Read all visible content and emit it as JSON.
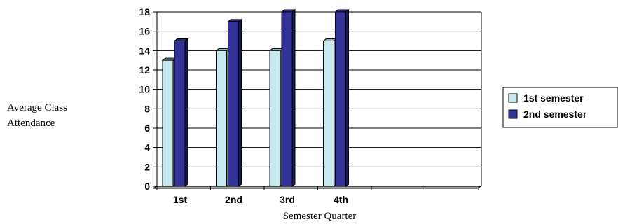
{
  "chart_data": {
    "type": "bar",
    "categories": [
      "1st",
      "2nd",
      "3rd",
      "4th"
    ],
    "series": [
      {
        "name": "1st semester",
        "values": [
          13,
          14,
          14,
          15
        ],
        "color": "#c6e9ed"
      },
      {
        "name": "2nd semester",
        "values": [
          15,
          17,
          18,
          18
        ],
        "color": "#33339a"
      }
    ],
    "title": "",
    "xlabel": "Semester Quarter",
    "ylabel_lines": [
      "Average Class",
      "Attendance"
    ],
    "ylim": [
      0,
      18
    ],
    "yticks": [
      0,
      2,
      4,
      6,
      8,
      10,
      12,
      14,
      16,
      18
    ],
    "grid": true,
    "legend": "right"
  }
}
